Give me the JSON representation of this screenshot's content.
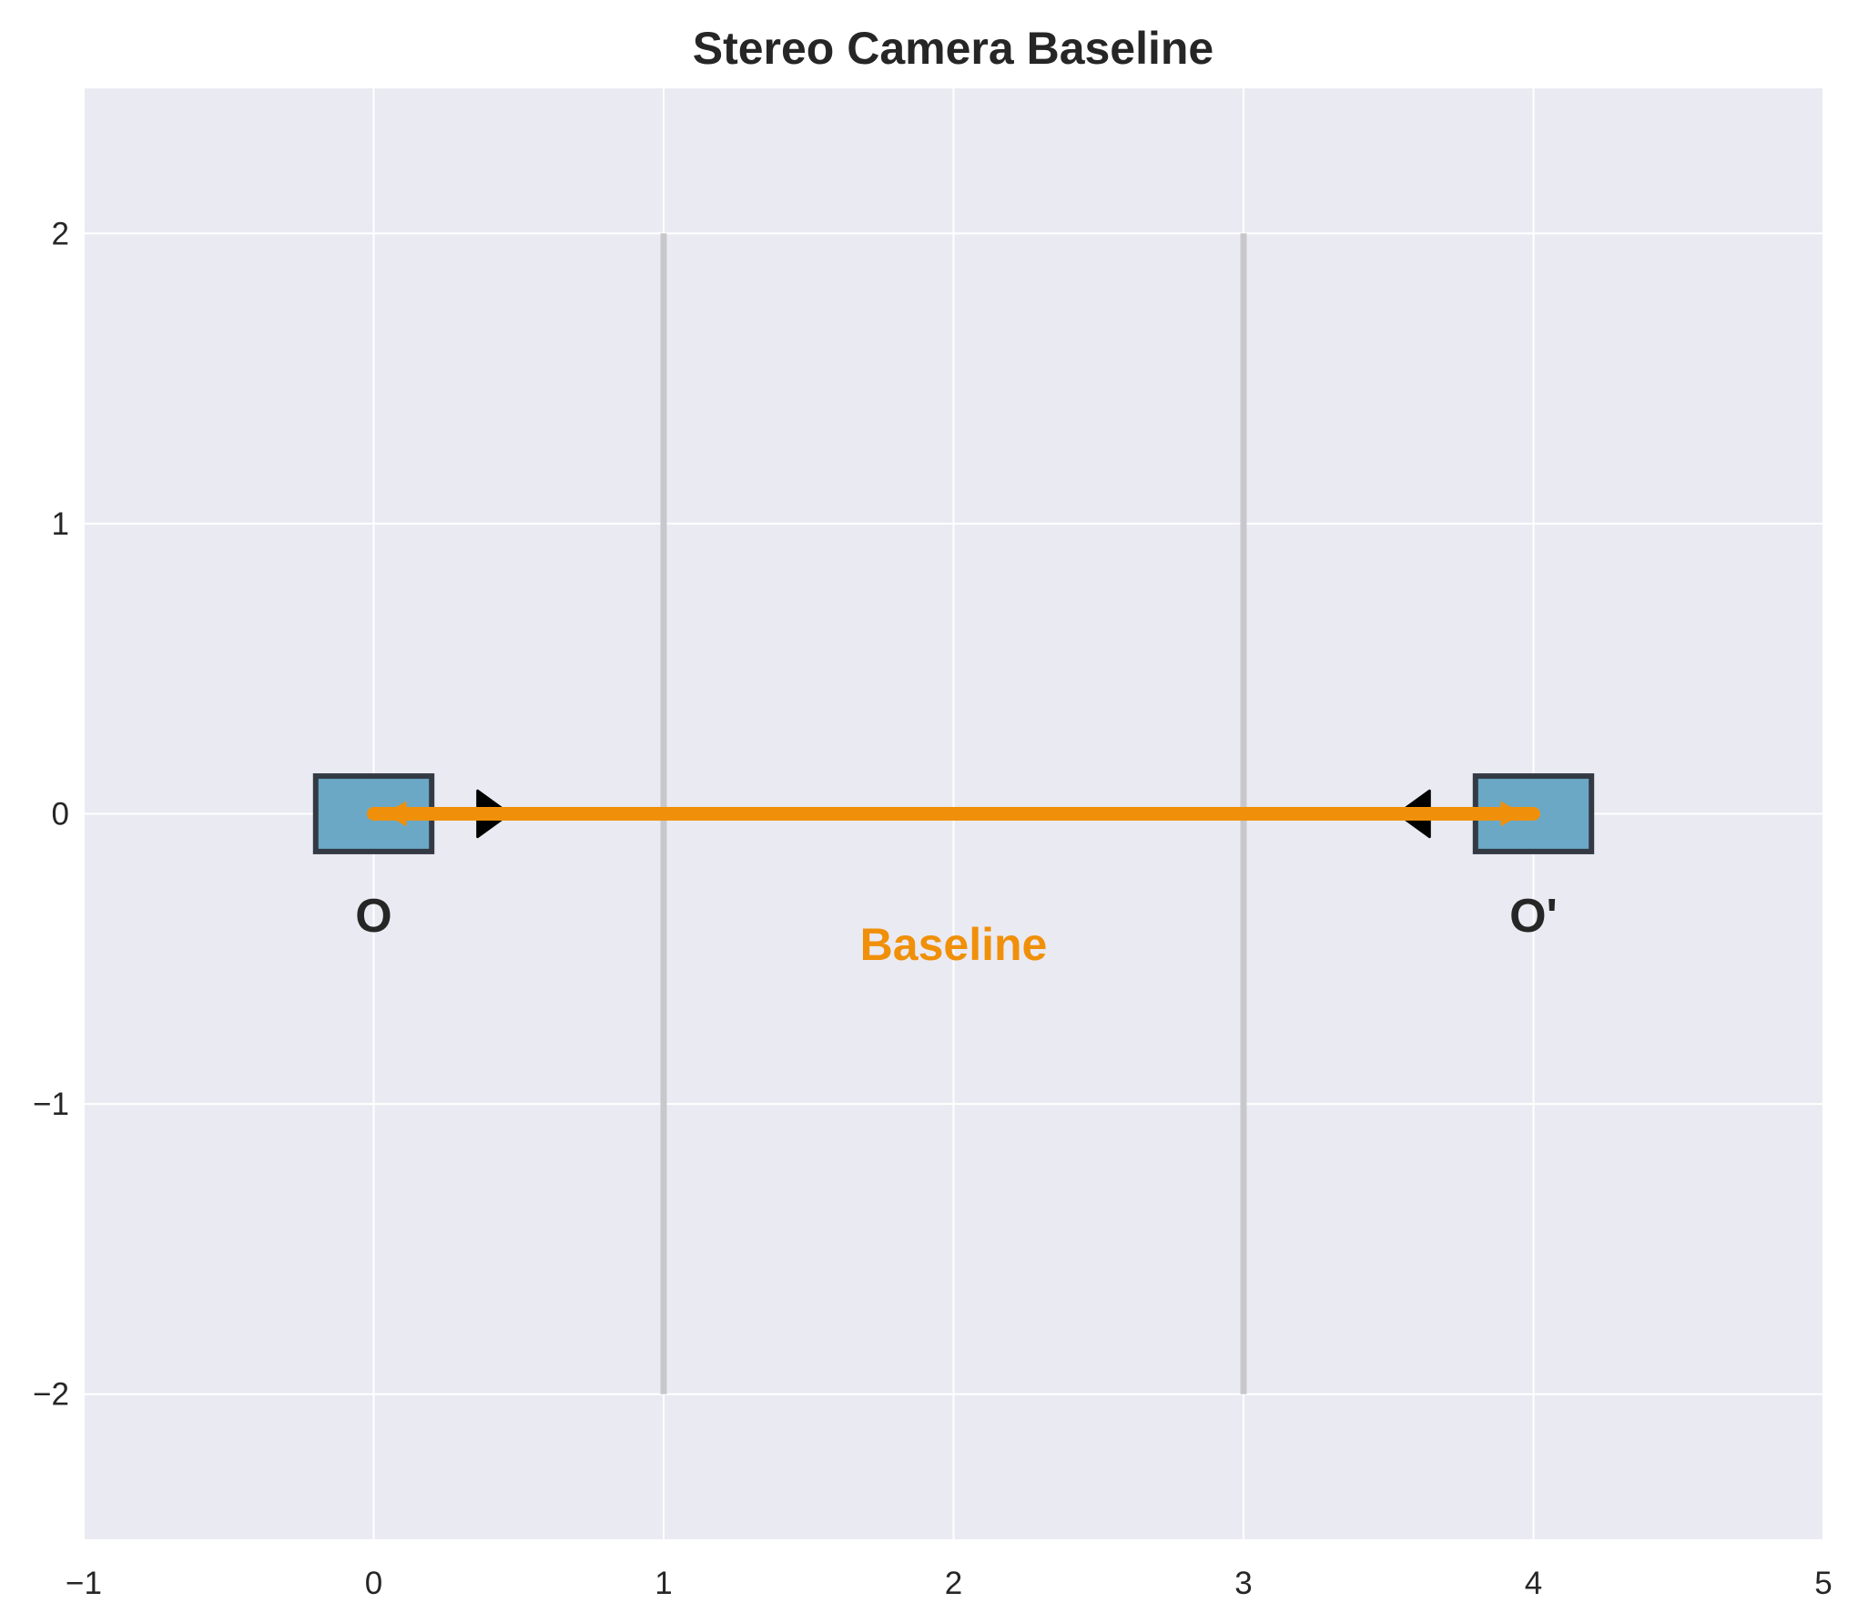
{
  "title": "Stereo Camera Baseline",
  "colors": {
    "plot_background": "#eaeaf2",
    "grid": "#ffffff",
    "camera_fill": "#6aa8c6",
    "camera_edge": "#333a44",
    "baseline": "#f0900a",
    "plane": "#c8c8cc",
    "text": "#262626"
  },
  "axes": {
    "xlim": [
      -1,
      5
    ],
    "ylim": [
      -2.5,
      2.5
    ],
    "x_ticks": [
      {
        "value": -1,
        "label": "−1"
      },
      {
        "value": 0,
        "label": "0"
      },
      {
        "value": 1,
        "label": "1"
      },
      {
        "value": 2,
        "label": "2"
      },
      {
        "value": 3,
        "label": "3"
      },
      {
        "value": 4,
        "label": "4"
      },
      {
        "value": 5,
        "label": "5"
      }
    ],
    "y_ticks": [
      {
        "value": -2,
        "label": "−2"
      },
      {
        "value": -1,
        "label": "−1"
      },
      {
        "value": 0,
        "label": "0"
      },
      {
        "value": 1,
        "label": "1"
      },
      {
        "value": 2,
        "label": "2"
      }
    ],
    "grid": true
  },
  "cameras": [
    {
      "id": "left",
      "center": [
        0,
        0
      ],
      "width": 0.4,
      "height": 0.26,
      "label": "O",
      "label_pos": [
        0,
        -0.35
      ],
      "view_dir": "right"
    },
    {
      "id": "right",
      "center": [
        4,
        0
      ],
      "width": 0.4,
      "height": 0.26,
      "label": "O'",
      "label_pos": [
        4,
        -0.35
      ],
      "view_dir": "left"
    }
  ],
  "image_planes": [
    {
      "x": 1,
      "y_range": [
        -2,
        2
      ]
    },
    {
      "x": 3,
      "y_range": [
        -2,
        2
      ]
    }
  ],
  "baseline": {
    "from": [
      0,
      0
    ],
    "to": [
      4,
      0
    ],
    "label": "Baseline",
    "label_pos": [
      2,
      -0.45
    ]
  },
  "view_markers": [
    {
      "x": 0.4,
      "y": 0,
      "direction": "right"
    },
    {
      "x": 3.6,
      "y": 0,
      "direction": "left"
    }
  ]
}
